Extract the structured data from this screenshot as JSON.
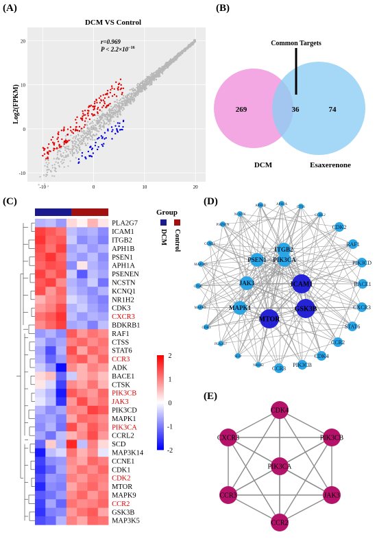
{
  "panels": {
    "A": {
      "letter": "(A)",
      "title": "DCM VS Control",
      "ylabel": "Log2(FPKM)",
      "r_text": "r=0.969",
      "p_text": "P < 2.2×10",
      "p_exp": "−16",
      "x_ticks": [
        "-10",
        "0",
        "10",
        "20"
      ],
      "y_ticks": [
        "20",
        "10",
        "0",
        "-10"
      ]
    },
    "B": {
      "letter": "(B)",
      "annotation": "Common Targets",
      "left_count": "269",
      "overlap_count": "36",
      "right_count": "74",
      "left_label": "DCM",
      "right_label": "Esaxerenone",
      "colors": {
        "left": "#f2a3e3",
        "right": "#8ecdf4"
      }
    },
    "C": {
      "letter": "(C)",
      "legend_title": "Group",
      "group_labels": [
        "DCM",
        "Control"
      ],
      "group_colors": [
        "#1a1a8c",
        "#a01010"
      ],
      "scale_ticks": [
        "2",
        "1",
        "0",
        "-1",
        "-2"
      ],
      "genes": [
        {
          "name": "PLA2G7",
          "red": false
        },
        {
          "name": "ICAM1",
          "red": false
        },
        {
          "name": "ITGB2",
          "red": false
        },
        {
          "name": "APH1B",
          "red": false
        },
        {
          "name": "PSEN1",
          "red": false
        },
        {
          "name": "APH1A",
          "red": false
        },
        {
          "name": "PSENEN",
          "red": false
        },
        {
          "name": "NCSTN",
          "red": false
        },
        {
          "name": "KCNQ1",
          "red": false
        },
        {
          "name": "NR1H2",
          "red": false
        },
        {
          "name": "CDK3",
          "red": false
        },
        {
          "name": "CXCR3",
          "red": true
        },
        {
          "name": "BDKRB1",
          "red": false
        },
        {
          "name": "RAF1",
          "red": false
        },
        {
          "name": "CTSS",
          "red": false
        },
        {
          "name": "STAT6",
          "red": false
        },
        {
          "name": "CCR3",
          "red": true
        },
        {
          "name": "ADK",
          "red": false
        },
        {
          "name": "BACE1",
          "red": false
        },
        {
          "name": "CTSK",
          "red": false
        },
        {
          "name": "PIK3CB",
          "red": true
        },
        {
          "name": "JAK3",
          "red": true
        },
        {
          "name": "PIK3CD",
          "red": false
        },
        {
          "name": "MAPK1",
          "red": false
        },
        {
          "name": "PIK3CA",
          "red": true
        },
        {
          "name": "CCRL2",
          "red": false
        },
        {
          "name": "SCD",
          "red": false
        },
        {
          "name": "MAP3K14",
          "red": false
        },
        {
          "name": "CCNE1",
          "red": false
        },
        {
          "name": "CDK1",
          "red": false
        },
        {
          "name": "CDK2",
          "red": true
        },
        {
          "name": "MTOR",
          "red": false
        },
        {
          "name": "MAPK9",
          "red": false
        },
        {
          "name": "CCR2",
          "red": true
        },
        {
          "name": "GSK3B",
          "red": false
        },
        {
          "name": "MAP3K5",
          "red": false
        }
      ],
      "matrix": [
        [
          -0.6,
          -0.5,
          -0.8,
          0.3,
          0.1,
          0.6,
          0.2
        ],
        [
          1.5,
          1.3,
          1.1,
          -0.5,
          -0.7,
          -0.6,
          -0.9
        ],
        [
          1.6,
          1.2,
          1.3,
          -0.4,
          -0.9,
          -0.7,
          -1.0
        ],
        [
          1.4,
          1.1,
          1.5,
          -0.7,
          -0.5,
          -0.8,
          -0.6
        ],
        [
          1.3,
          1.6,
          1.2,
          -0.6,
          -0.8,
          -0.5,
          -0.9
        ],
        [
          1.2,
          1.4,
          1.3,
          -0.9,
          0.2,
          -0.6,
          -0.8
        ],
        [
          1.5,
          1.1,
          1.4,
          -0.4,
          -1.3,
          -0.5,
          -0.7
        ],
        [
          1.3,
          1.5,
          0.9,
          -0.6,
          -0.8,
          -0.4,
          -1.1
        ],
        [
          1.4,
          0.8,
          1.2,
          -0.5,
          -0.7,
          -0.9,
          -0.6
        ],
        [
          0.6,
          0.9,
          1.1,
          -0.3,
          -0.5,
          -0.8,
          -1.0
        ],
        [
          0.8,
          1.0,
          1.4,
          -0.6,
          -0.4,
          -0.7,
          -0.9
        ],
        [
          1.1,
          1.3,
          1.6,
          -0.5,
          -0.8,
          -0.6,
          -0.7
        ],
        [
          0.9,
          1.2,
          1.5,
          -0.7,
          -0.6,
          -1.0,
          -0.5
        ],
        [
          -0.8,
          -0.6,
          -0.9,
          1.3,
          0.8,
          1.1,
          0.9
        ],
        [
          -0.5,
          -0.9,
          -0.7,
          1.0,
          1.2,
          0.9,
          1.1
        ],
        [
          -0.7,
          -1.4,
          -0.6,
          1.4,
          0.7,
          1.2,
          1.0
        ],
        [
          -0.6,
          -1.2,
          -0.8,
          1.1,
          1.3,
          0.8,
          1.2
        ],
        [
          -0.4,
          -0.8,
          -1.9,
          0.9,
          0.6,
          1.0,
          0.8
        ],
        [
          0.3,
          0.5,
          -1.2,
          -0.4,
          0.6,
          0.8,
          0.5
        ],
        [
          0.2,
          -0.3,
          -1.5,
          0.9,
          0.7,
          1.1,
          0.6
        ],
        [
          -0.3,
          -0.6,
          -1.8,
          1.3,
          1.0,
          0.8,
          1.2
        ],
        [
          -0.2,
          -0.5,
          -1.6,
          0.8,
          1.4,
          0.9,
          1.1
        ],
        [
          -0.6,
          -0.9,
          -0.7,
          1.0,
          0.9,
          1.5,
          1.3
        ],
        [
          -0.8,
          -0.7,
          -1.0,
          0.7,
          1.2,
          1.1,
          0.9
        ],
        [
          -0.9,
          -0.6,
          -1.1,
          1.4,
          0.8,
          1.3,
          1.0
        ],
        [
          -0.7,
          -1.1,
          -0.5,
          0.6,
          0.9,
          1.4,
          0.8
        ],
        [
          -1.2,
          0.4,
          -0.6,
          1.7,
          -0.5,
          1.0,
          0.3
        ],
        [
          -1.8,
          -0.5,
          -0.3,
          1.1,
          0.6,
          0.9,
          -0.2
        ],
        [
          -1.5,
          -0.9,
          -0.8,
          0.9,
          0.7,
          1.2,
          1.0
        ],
        [
          -1.6,
          -1.2,
          -0.7,
          0.8,
          1.1,
          0.9,
          1.2
        ],
        [
          -1.4,
          -0.8,
          -0.9,
          1.0,
          0.8,
          1.1,
          1.0
        ],
        [
          -1.7,
          -0.9,
          -1.0,
          0.7,
          1.0,
          1.2,
          0.9
        ],
        [
          -1.3,
          -1.1,
          -0.8,
          0.9,
          1.2,
          0.8,
          1.1
        ],
        [
          -1.5,
          -0.7,
          -1.2,
          1.1,
          0.9,
          1.0,
          1.2
        ],
        [
          -1.6,
          -1.0,
          -0.9,
          0.8,
          1.1,
          1.3,
          0.7
        ],
        [
          -1.4,
          -1.2,
          -0.6,
          1.0,
          0.7,
          1.2,
          1.1
        ]
      ]
    },
    "D": {
      "letter": "(D)",
      "nodes": [
        {
          "label": "MTOR",
          "size": 3
        },
        {
          "label": "GSK3B",
          "size": 3
        },
        {
          "label": "ICAM1",
          "size": 3
        },
        {
          "label": "PIK3CA",
          "size": 2
        },
        {
          "label": "ITGB2",
          "size": 2
        },
        {
          "label": "PSEN1",
          "size": 2
        },
        {
          "label": "JAK3",
          "size": 2
        },
        {
          "label": "MAPK1",
          "size": 2
        },
        {
          "label": "STAT6",
          "size": 1
        },
        {
          "label": "CDK4",
          "size": 1
        },
        {
          "label": "CCR2",
          "size": 1
        },
        {
          "label": "PIK3CB",
          "size": 1
        },
        {
          "label": "CCR3",
          "size": 1
        },
        {
          "label": "CXCR3",
          "size": 1
        },
        {
          "label": "BACE1",
          "size": 1
        },
        {
          "label": "PIK3CD",
          "size": 1
        },
        {
          "label": "RAF1",
          "size": 1
        },
        {
          "label": "CDK2",
          "size": 1
        },
        {
          "label": "CCRL2",
          "size": 0
        },
        {
          "label": "CTSS",
          "size": 0
        },
        {
          "label": "APH1A",
          "size": 0
        },
        {
          "label": "APH1B",
          "size": 0
        },
        {
          "label": "NCSTN",
          "size": 0
        },
        {
          "label": "PSENEN",
          "size": 0
        },
        {
          "label": "CCNE1",
          "size": 0
        },
        {
          "label": "MAP3K5",
          "size": 0
        },
        {
          "label": "CTSK",
          "size": 0
        },
        {
          "label": "MAPK9",
          "size": 0
        },
        {
          "label": "CDK3",
          "size": 0
        },
        {
          "label": "PLA2G7",
          "size": 0
        },
        {
          "label": "SCD",
          "size": 0
        },
        {
          "label": "NR1H2",
          "size": 0
        }
      ]
    },
    "E": {
      "letter": "(E)",
      "nodes": [
        {
          "label": "CDK4"
        },
        {
          "label": "PIK3CB"
        },
        {
          "label": "JAK3"
        },
        {
          "label": "CCR2"
        },
        {
          "label": "CCR3"
        },
        {
          "label": "CXCR3"
        },
        {
          "label": "PIK3CA"
        }
      ],
      "node_color": "#b5126a"
    }
  }
}
